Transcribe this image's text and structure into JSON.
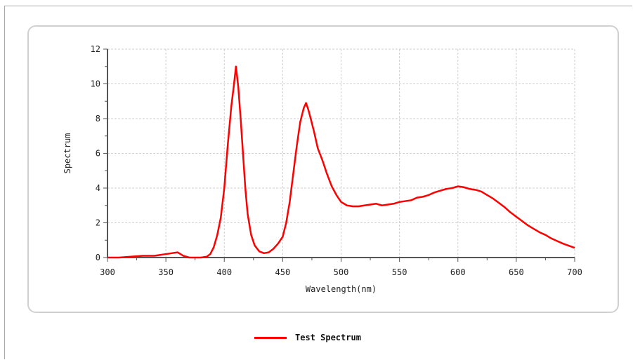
{
  "chart_data": {
    "type": "line",
    "title": "",
    "xlabel": "Wavelength(nm)",
    "ylabel": "Spectrum",
    "xlim": [
      300,
      700
    ],
    "ylim": [
      0,
      12
    ],
    "x_ticks": [
      300,
      350,
      400,
      450,
      500,
      550,
      600,
      650,
      700
    ],
    "y_ticks": [
      0,
      2,
      4,
      6,
      8,
      10,
      12
    ],
    "grid": true,
    "legend_position": "bottom",
    "series": [
      {
        "name": "Test Spectrum",
        "color": "#ff0000",
        "x": [
          300,
          310,
          320,
          330,
          340,
          350,
          355,
          360,
          365,
          370,
          375,
          380,
          385,
          388,
          391,
          394,
          397,
          400,
          403,
          406,
          408,
          410,
          412,
          414,
          416,
          418,
          420,
          423,
          426,
          430,
          434,
          438,
          442,
          446,
          450,
          453,
          456,
          459,
          462,
          465,
          468,
          470,
          472,
          474,
          477,
          480,
          484,
          488,
          492,
          496,
          500,
          505,
          510,
          515,
          520,
          525,
          530,
          535,
          540,
          545,
          550,
          555,
          560,
          565,
          570,
          575,
          580,
          585,
          590,
          595,
          600,
          605,
          610,
          615,
          620,
          625,
          630,
          635,
          640,
          645,
          650,
          655,
          660,
          665,
          670,
          675,
          680,
          685,
          690,
          695,
          700
        ],
        "y": [
          0.0,
          0.0,
          0.05,
          0.1,
          0.1,
          0.2,
          0.25,
          0.3,
          0.1,
          0.0,
          0.0,
          0.0,
          0.05,
          0.2,
          0.6,
          1.3,
          2.3,
          4.0,
          6.5,
          8.7,
          9.8,
          11.0,
          9.8,
          8.0,
          6.0,
          4.0,
          2.5,
          1.3,
          0.7,
          0.35,
          0.25,
          0.3,
          0.5,
          0.8,
          1.2,
          2.0,
          3.2,
          4.8,
          6.4,
          7.8,
          8.6,
          8.9,
          8.5,
          8.0,
          7.2,
          6.3,
          5.6,
          4.8,
          4.1,
          3.6,
          3.2,
          3.0,
          2.95,
          2.95,
          3.0,
          3.05,
          3.1,
          3.0,
          3.05,
          3.1,
          3.2,
          3.25,
          3.3,
          3.45,
          3.5,
          3.6,
          3.75,
          3.85,
          3.95,
          4.0,
          4.1,
          4.05,
          3.95,
          3.9,
          3.8,
          3.6,
          3.4,
          3.15,
          2.9,
          2.6,
          2.35,
          2.1,
          1.85,
          1.65,
          1.45,
          1.3,
          1.1,
          0.95,
          0.8,
          0.68,
          0.56
        ]
      }
    ]
  }
}
